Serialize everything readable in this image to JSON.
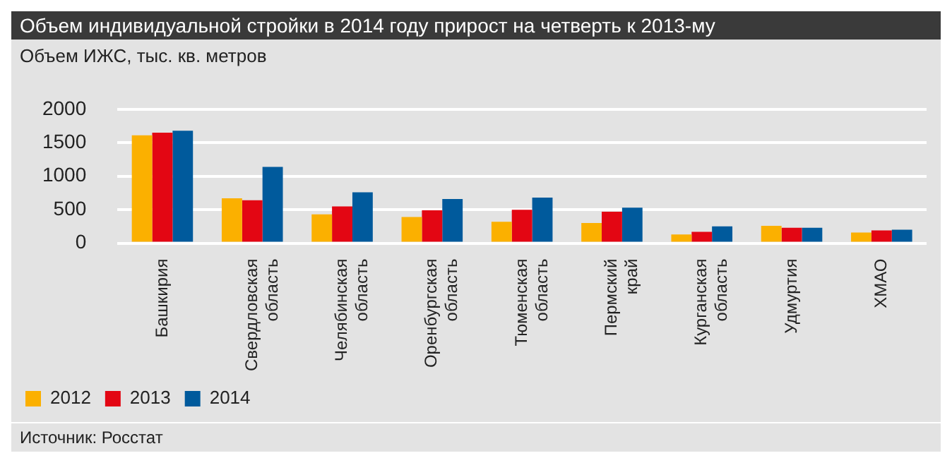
{
  "chart_data": {
    "type": "bar",
    "title": "Объем индивидуальной стройки в 2014 году прирост на четверть к 2013-му",
    "ylabel": "Объем ИЖС, тыс. кв. метров",
    "categories": [
      "Башкирия",
      "Свердловская область",
      "Челябинская область",
      "Оренбургская область",
      "Тюменская область",
      "Пермский край",
      "Курганская область",
      "Удмуртия",
      "ХМАО"
    ],
    "series": [
      {
        "name": "2012",
        "color": "#fbb000",
        "values": [
          1610,
          670,
          430,
          390,
          320,
          300,
          130,
          260,
          160
        ]
      },
      {
        "name": "2013",
        "color": "#e30613",
        "values": [
          1650,
          640,
          550,
          490,
          500,
          470,
          170,
          230,
          190
        ]
      },
      {
        "name": "2014",
        "color": "#005a9c",
        "values": [
          1680,
          1140,
          760,
          660,
          680,
          530,
          250,
          230,
          200
        ]
      }
    ],
    "ylim": [
      0,
      2000
    ],
    "yticks": [
      0,
      500,
      1000,
      1500,
      2000
    ],
    "grid": "y",
    "legend": "bottom left",
    "annotations": [
      "Источник: Росстат"
    ]
  }
}
